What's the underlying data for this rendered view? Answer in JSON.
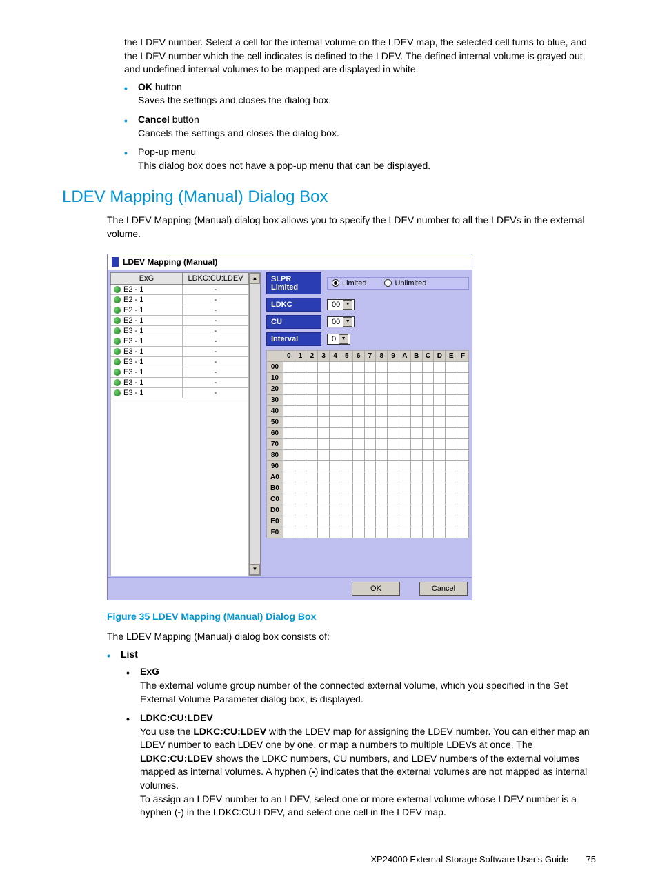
{
  "intro_continuation": "the LDEV number. Select a cell for the internal volume on the LDEV map, the selected cell turns to blue, and the LDEV number which the cell indicates is defined to the LDEV. The defined internal volume is grayed out, and undefined internal volumes to be mapped are displayed in white.",
  "bullets": {
    "ok": {
      "label": "OK",
      "suffix": " button",
      "desc": "Saves the settings and closes the dialog box."
    },
    "cancel": {
      "label": "Cancel",
      "suffix": " button",
      "desc": "Cancels the settings and closes the dialog box."
    },
    "popup": {
      "label": "Pop-up menu",
      "desc": "This dialog box does not have a pop-up menu that can be displayed."
    }
  },
  "section_heading": "LDEV Mapping (Manual) Dialog Box",
  "section_intro": "The LDEV Mapping (Manual) dialog box allows you to specify the LDEV number to all the LDEVs in the external volume.",
  "dialog": {
    "title": "LDEV Mapping (Manual)",
    "cols": {
      "exg": "ExG",
      "ldev": "LDKC:CU:LDEV"
    },
    "rows": [
      {
        "exg": "E2 - 1",
        "v": "-"
      },
      {
        "exg": "E2 - 1",
        "v": "-"
      },
      {
        "exg": "E2 - 1",
        "v": "-"
      },
      {
        "exg": "E2 - 1",
        "v": "-"
      },
      {
        "exg": "E3 - 1",
        "v": "-"
      },
      {
        "exg": "E3 - 1",
        "v": "-"
      },
      {
        "exg": "E3 - 1",
        "v": "-"
      },
      {
        "exg": "E3 - 1",
        "v": "-"
      },
      {
        "exg": "E3 - 1",
        "v": "-"
      },
      {
        "exg": "E3 - 1",
        "v": "-"
      },
      {
        "exg": "E3 - 1",
        "v": "-"
      }
    ],
    "ctrls": {
      "slpr": {
        "label": "SLPR Limited",
        "opt1": "Limited",
        "opt2": "Unlimited"
      },
      "ldkc": {
        "label": "LDKC",
        "val": "00"
      },
      "cu": {
        "label": "CU",
        "val": "00"
      },
      "interval": {
        "label": "Interval",
        "val": "0"
      }
    },
    "map": {
      "cols": [
        "0",
        "1",
        "2",
        "3",
        "4",
        "5",
        "6",
        "7",
        "8",
        "9",
        "A",
        "B",
        "C",
        "D",
        "E",
        "F"
      ],
      "rows": [
        "00",
        "10",
        "20",
        "30",
        "40",
        "50",
        "60",
        "70",
        "80",
        "90",
        "A0",
        "B0",
        "C0",
        "D0",
        "E0",
        "F0"
      ]
    },
    "buttons": {
      "ok": "OK",
      "cancel": "Cancel"
    }
  },
  "figure_caption": "Figure 35 LDEV Mapping (Manual) Dialog Box",
  "consists_intro": "The LDEV Mapping (Manual) dialog box consists of:",
  "list": {
    "label": "List",
    "exg": {
      "label": "ExG",
      "desc": "The external volume group number of the connected external volume, which you specified in the Set External Volume Parameter dialog box, is displayed."
    },
    "ldkc": {
      "label": "LDKC:CU:LDEV",
      "d1a": "You use the ",
      "d1b": "LDKC:CU:LDEV",
      "d1c": " with the LDEV map for assigning the LDEV number. You can either map an LDEV number to each LDEV one by one, or map a numbers to multiple LDEVs at once. The ",
      "d1d": "LDKC:CU:LDEV",
      "d1e": " shows the LDKC numbers, CU numbers, and LDEV numbers of the external volumes mapped as internal volumes. A hyphen (",
      "d1f": "-",
      "d1g": ") indicates that the external volumes are not mapped as internal volumes.",
      "d2a": "To assign an LDEV number to an LDEV, select one or more external volume whose LDEV number is a hyphen (",
      "d2b": "-",
      "d2c": ") in the LDKC:CU:LDEV, and select one cell in the LDEV map."
    }
  },
  "footer": {
    "title": "XP24000 External Storage Software User's Guide",
    "page": "75"
  }
}
